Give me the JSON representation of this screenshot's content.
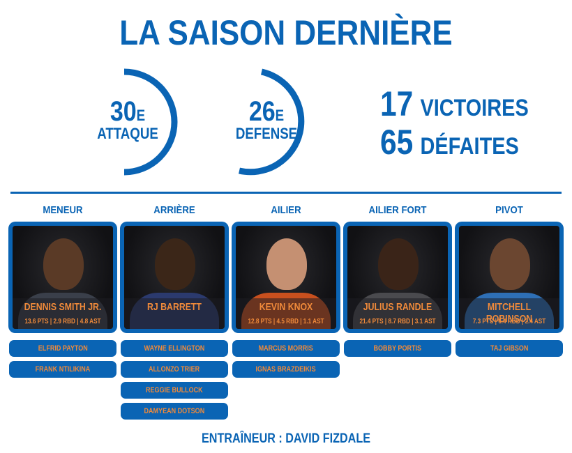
{
  "title": "LA SAISON DERNIÈRE",
  "colors": {
    "blue": "#0a64b4",
    "orange": "#f08a3a"
  },
  "rankings": [
    {
      "rank": "30",
      "suffix": "E",
      "label": "ATTAQUE"
    },
    {
      "rank": "26",
      "suffix": "E",
      "label": "DEFENSE"
    }
  ],
  "record": {
    "wins": "17",
    "wins_label": "VICTOIRES",
    "losses": "65",
    "losses_label": "DÉFAITES"
  },
  "positions": [
    {
      "label": "MENEUR",
      "starter": {
        "name": "DENNIS SMITH JR.",
        "stats": "13.6 PTS | 2.9 RBD | 4.8 AST"
      },
      "bench": [
        "ELFRID PAYTON",
        "FRANK NTILIKINA"
      ]
    },
    {
      "label": "ARRIÈRE",
      "starter": {
        "name": "RJ BARRETT",
        "stats": ""
      },
      "bench": [
        "WAYNE ELLINGTON",
        "ALLONZO TRIER",
        "REGGIE BULLOCK",
        "DAMYEAN DOTSON"
      ]
    },
    {
      "label": "AILIER",
      "starter": {
        "name": "KEVIN KNOX",
        "stats": "12.8 PTS | 4.5 RBD | 1.1 AST"
      },
      "bench": [
        "MARCUS MORRIS",
        "IGNAS BRAZDEIKIS"
      ]
    },
    {
      "label": "AILIER FORT",
      "starter": {
        "name": "JULIUS RANDLE",
        "stats": "21.4 PTS | 8.7 RBD | 3.1 AST"
      },
      "bench": [
        "BOBBY PORTIS"
      ]
    },
    {
      "label": "PIVOT",
      "starter": {
        "name": "MITCHELL ROBINSON",
        "stats": "7.3 PTS | 6.4 RBD | 2.4 AST"
      },
      "bench": [
        "TAJ GIBSON"
      ]
    }
  ],
  "coach": "ENTRAÎNEUR : DAVID FIZDALE"
}
